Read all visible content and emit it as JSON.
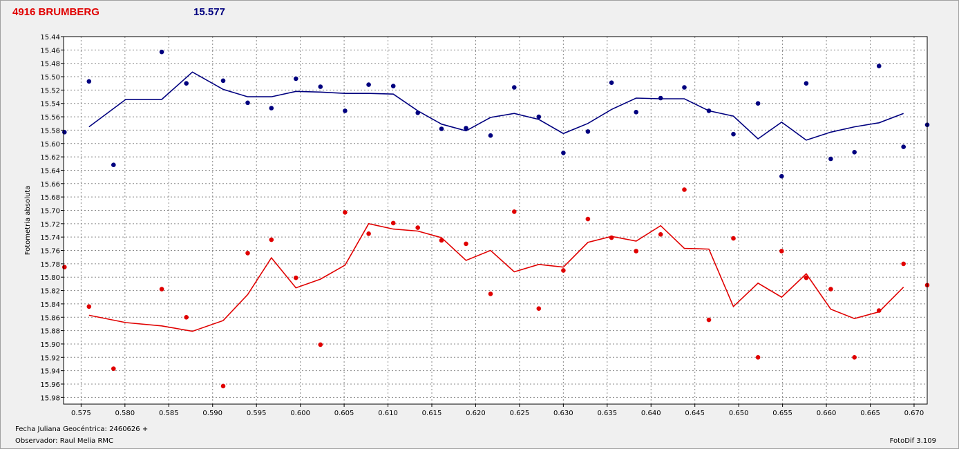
{
  "header": {
    "star_name": "4916 BRUMBERG",
    "magnitude": "15.577"
  },
  "footer": {
    "julian_date": "Fecha Juliana Geocéntrica: 2460626 +",
    "observer": "Observador: Raul Melia RMC",
    "software": "FotoDif 3.109"
  },
  "colors": {
    "blue_series": "#00007f",
    "red_series": "#e00000",
    "background": "#f0f0f0",
    "plot_background": "#ffffff",
    "grid": "#888888"
  },
  "chart_data": {
    "type": "scatter",
    "title": "",
    "xlabel": "",
    "ylabel": "Fotometria absoluta",
    "xlim": [
      0.573,
      0.6715
    ],
    "ylim": [
      15.44,
      15.99
    ],
    "y_inverted": true,
    "grid": true,
    "x_ticks": [
      "0.575",
      "0.580",
      "0.585",
      "0.590",
      "0.595",
      "0.600",
      "0.605",
      "0.610",
      "0.615",
      "0.620",
      "0.625",
      "0.630",
      "0.635",
      "0.640",
      "0.645",
      "0.650",
      "0.655",
      "0.660",
      "0.665",
      "0.670"
    ],
    "y_ticks": [
      "15.44",
      "15.46",
      "15.48",
      "15.50",
      "15.52",
      "15.54",
      "15.56",
      "15.58",
      "15.60",
      "15.62",
      "15.64",
      "15.66",
      "15.68",
      "15.70",
      "15.72",
      "15.74",
      "15.76",
      "15.78",
      "15.80",
      "15.82",
      "15.84",
      "15.86",
      "15.88",
      "15.90",
      "15.92",
      "15.94",
      "15.96",
      "15.98"
    ],
    "series": [
      {
        "color": "#00007f",
        "points": [
          [
            0.5731,
            15.583
          ],
          [
            0.5759,
            15.507
          ],
          [
            0.5787,
            15.632
          ],
          [
            0.5842,
            15.463
          ],
          [
            0.587,
            15.51
          ],
          [
            0.5912,
            15.506
          ],
          [
            0.594,
            15.539
          ],
          [
            0.5967,
            15.547
          ],
          [
            0.5995,
            15.503
          ],
          [
            0.6023,
            15.515
          ],
          [
            0.6051,
            15.551
          ],
          [
            0.6078,
            15.512
          ],
          [
            0.6106,
            15.514
          ],
          [
            0.6134,
            15.554
          ],
          [
            0.6161,
            15.578
          ],
          [
            0.6189,
            15.577
          ],
          [
            0.6217,
            15.588
          ],
          [
            0.6244,
            15.516
          ],
          [
            0.6272,
            15.56
          ],
          [
            0.63,
            15.614
          ],
          [
            0.6328,
            15.582
          ],
          [
            0.6355,
            15.509
          ],
          [
            0.6383,
            15.553
          ],
          [
            0.6411,
            15.532
          ],
          [
            0.6438,
            15.516
          ],
          [
            0.6466,
            15.551
          ],
          [
            0.6494,
            15.586
          ],
          [
            0.6522,
            15.54
          ],
          [
            0.6549,
            15.649
          ],
          [
            0.6577,
            15.51
          ],
          [
            0.6605,
            15.623
          ],
          [
            0.6632,
            15.613
          ],
          [
            0.666,
            15.484
          ],
          [
            0.6688,
            15.605
          ],
          [
            0.6715,
            15.572
          ]
        ],
        "trend": [
          [
            0.5759,
            15.575
          ],
          [
            0.5801,
            15.534
          ],
          [
            0.5842,
            15.534
          ],
          [
            0.5877,
            15.493
          ],
          [
            0.5912,
            15.519
          ],
          [
            0.594,
            15.53
          ],
          [
            0.5967,
            15.53
          ],
          [
            0.5995,
            15.522
          ],
          [
            0.6023,
            15.523
          ],
          [
            0.6051,
            15.525
          ],
          [
            0.6078,
            15.525
          ],
          [
            0.6106,
            15.526
          ],
          [
            0.6134,
            15.551
          ],
          [
            0.6161,
            15.571
          ],
          [
            0.6189,
            15.581
          ],
          [
            0.6217,
            15.561
          ],
          [
            0.6244,
            15.555
          ],
          [
            0.6272,
            15.564
          ],
          [
            0.63,
            15.585
          ],
          [
            0.6328,
            15.57
          ],
          [
            0.6355,
            15.549
          ],
          [
            0.6383,
            15.532
          ],
          [
            0.6411,
            15.533
          ],
          [
            0.6438,
            15.533
          ],
          [
            0.6466,
            15.551
          ],
          [
            0.6494,
            15.559
          ],
          [
            0.6522,
            15.593
          ],
          [
            0.6549,
            15.568
          ],
          [
            0.6577,
            15.595
          ],
          [
            0.6605,
            15.583
          ],
          [
            0.6632,
            15.575
          ],
          [
            0.666,
            15.569
          ],
          [
            0.6688,
            15.555
          ]
        ]
      },
      {
        "color": "#e00000",
        "points": [
          [
            0.5731,
            15.785
          ],
          [
            0.5759,
            15.844
          ],
          [
            0.5787,
            15.937
          ],
          [
            0.5842,
            15.818
          ],
          [
            0.587,
            15.86
          ],
          [
            0.5912,
            15.963
          ],
          [
            0.594,
            15.764
          ],
          [
            0.5967,
            15.744
          ],
          [
            0.5995,
            15.801
          ],
          [
            0.6023,
            15.901
          ],
          [
            0.6051,
            15.703
          ],
          [
            0.6078,
            15.735
          ],
          [
            0.6106,
            15.719
          ],
          [
            0.6134,
            15.726
          ],
          [
            0.6161,
            15.745
          ],
          [
            0.6189,
            15.75
          ],
          [
            0.6217,
            15.825
          ],
          [
            0.6244,
            15.702
          ],
          [
            0.6272,
            15.847
          ],
          [
            0.63,
            15.79
          ],
          [
            0.6328,
            15.713
          ],
          [
            0.6355,
            15.741
          ],
          [
            0.6383,
            15.761
          ],
          [
            0.6411,
            15.736
          ],
          [
            0.6438,
            15.669
          ],
          [
            0.6466,
            15.864
          ],
          [
            0.6494,
            15.742
          ],
          [
            0.6522,
            15.92
          ],
          [
            0.6549,
            15.761
          ],
          [
            0.6577,
            15.801
          ],
          [
            0.6605,
            15.818
          ],
          [
            0.6632,
            15.92
          ],
          [
            0.666,
            15.85
          ],
          [
            0.6688,
            15.78
          ],
          [
            0.6715,
            15.812
          ]
        ],
        "trend": [
          [
            0.5759,
            15.857
          ],
          [
            0.5801,
            15.868
          ],
          [
            0.5842,
            15.873
          ],
          [
            0.5877,
            15.881
          ],
          [
            0.5912,
            15.865
          ],
          [
            0.594,
            15.826
          ],
          [
            0.5967,
            15.771
          ],
          [
            0.5995,
            15.816
          ],
          [
            0.6023,
            15.803
          ],
          [
            0.6051,
            15.782
          ],
          [
            0.6078,
            15.72
          ],
          [
            0.6106,
            15.728
          ],
          [
            0.6134,
            15.731
          ],
          [
            0.6161,
            15.741
          ],
          [
            0.6189,
            15.775
          ],
          [
            0.6217,
            15.76
          ],
          [
            0.6244,
            15.792
          ],
          [
            0.6272,
            15.781
          ],
          [
            0.63,
            15.785
          ],
          [
            0.6328,
            15.748
          ],
          [
            0.6355,
            15.739
          ],
          [
            0.6383,
            15.746
          ],
          [
            0.6411,
            15.723
          ],
          [
            0.6438,
            15.757
          ],
          [
            0.6466,
            15.758
          ],
          [
            0.6494,
            15.844
          ],
          [
            0.6522,
            15.809
          ],
          [
            0.6549,
            15.83
          ],
          [
            0.6577,
            15.795
          ],
          [
            0.6605,
            15.848
          ],
          [
            0.6632,
            15.862
          ],
          [
            0.666,
            15.852
          ],
          [
            0.6688,
            15.815
          ]
        ]
      }
    ]
  }
}
